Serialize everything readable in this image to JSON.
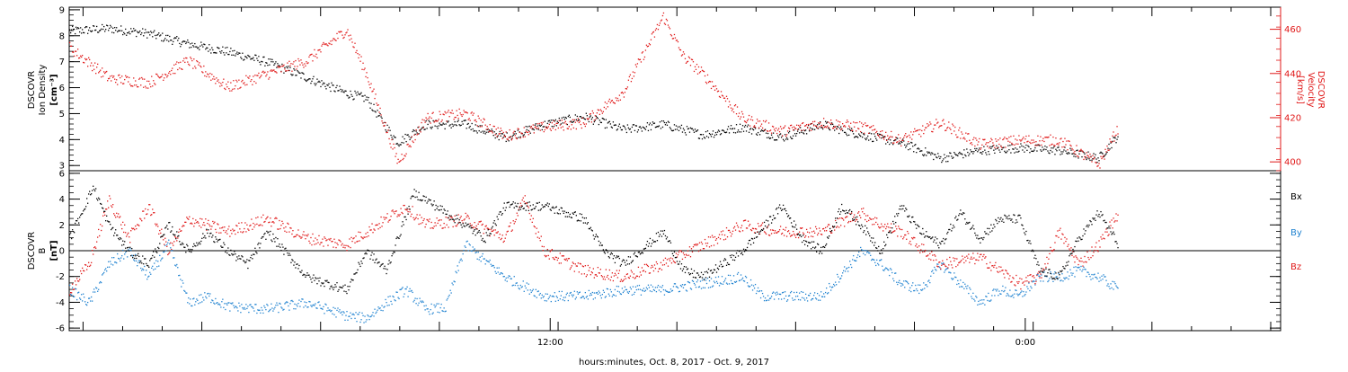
{
  "chart_data": [
    {
      "type": "scatter",
      "panel": "top",
      "ylabel_left": [
        "DSCOVR",
        "Ion Density",
        "[cm⁻³]"
      ],
      "ylabel_right": [
        "DSCOVR",
        "Velocity",
        "[km/s]"
      ],
      "ylim_left": [
        2.8,
        9.1
      ],
      "ylim_right": [
        396,
        470
      ],
      "yticks_left": [
        "3",
        "4",
        "5",
        "6",
        "7",
        "8",
        "9"
      ],
      "yticks_right": [
        "400",
        "420",
        "440",
        "460"
      ],
      "series": [
        {
          "color": "#000000",
          "axis": "left",
          "x": [
            0.0,
            1.0,
            2.0,
            3.0,
            4.0,
            5.0,
            6.0,
            7.0,
            7.5,
            8.0,
            8.3,
            9.0,
            10.0,
            11.0,
            12.0,
            13.0,
            14.0,
            15.0,
            16.0,
            17.0,
            18.0,
            19.0,
            20.0,
            21.0,
            22.0,
            23.0,
            24.0,
            25.0,
            26.0,
            26.5
          ],
          "y": [
            8.2,
            8.3,
            8.1,
            7.7,
            7.4,
            7.0,
            6.4,
            5.8,
            5.6,
            4.5,
            3.9,
            4.6,
            4.6,
            4.1,
            4.6,
            4.9,
            4.4,
            4.6,
            4.2,
            4.5,
            4.1,
            4.6,
            4.2,
            3.9,
            3.3,
            3.6,
            3.7,
            3.6,
            3.3,
            4.2
          ]
        },
        {
          "color": "#e01818",
          "axis": "right",
          "x": [
            0.0,
            1.0,
            2.0,
            3.0,
            4.0,
            5.0,
            6.0,
            7.0,
            7.5,
            8.0,
            8.3,
            9.0,
            10.0,
            11.0,
            12.0,
            13.0,
            14.0,
            15.0,
            15.5,
            16.0,
            17.0,
            18.0,
            19.0,
            20.0,
            21.0,
            22.0,
            23.0,
            24.0,
            25.0,
            26.0,
            26.5
          ],
          "y": [
            452,
            438,
            436,
            446,
            434,
            440,
            446,
            460,
            440,
            415,
            400,
            420,
            422,
            412,
            416,
            418,
            432,
            466,
            448,
            440,
            420,
            414,
            418,
            416,
            410,
            418,
            408,
            410,
            410,
            399,
            416
          ]
        }
      ]
    },
    {
      "type": "scatter",
      "panel": "bottom",
      "ylabel": [
        "DSCOVR",
        "B",
        "[nT]"
      ],
      "ylim": [
        -6.2,
        6.2
      ],
      "yticks": [
        "-6",
        "-4",
        "-2",
        "0",
        "2",
        "4",
        "6"
      ],
      "xticks": [
        "12:00",
        "0:00"
      ],
      "xlabel": "hours:minutes, Oct.  8, 2017 - Oct.  9, 2017",
      "legend": [
        "Bx",
        "By",
        "Bz"
      ],
      "series": [
        {
          "name": "Bx",
          "color": "#000000",
          "x": [
            0.0,
            0.6,
            1.0,
            1.5,
            2.0,
            2.5,
            3.0,
            3.5,
            4.0,
            4.5,
            5.0,
            6.0,
            7.0,
            7.5,
            8.0,
            8.7,
            9.0,
            10.0,
            10.5,
            11.0,
            12.0,
            13.0,
            13.5,
            14.0,
            15.0,
            15.5,
            16.0,
            17.0,
            18.0,
            18.5,
            19.0,
            19.5,
            20.0,
            20.5,
            21.0,
            21.5,
            22.0,
            22.5,
            23.0,
            23.5,
            24.0,
            24.5,
            25.0,
            25.5,
            26.0,
            26.5
          ],
          "y": [
            1.0,
            5.0,
            2.0,
            0.0,
            -1.0,
            2.0,
            0.0,
            1.5,
            0.0,
            -1.0,
            1.5,
            -2.0,
            -3.0,
            0.0,
            -1.5,
            4.5,
            4.0,
            2.0,
            1.0,
            3.5,
            3.5,
            2.5,
            0.0,
            -1.0,
            1.5,
            -1.5,
            -2.0,
            0.0,
            3.5,
            1.0,
            0.0,
            3.5,
            2.0,
            0.0,
            3.5,
            1.5,
            0.5,
            3.0,
            1.0,
            2.5,
            2.5,
            -1.5,
            -2.0,
            1.0,
            3.0,
            0.5
          ]
        },
        {
          "name": "By",
          "color": "#1f82d0",
          "x": [
            0.0,
            0.5,
            1.0,
            1.5,
            2.0,
            2.5,
            3.0,
            3.5,
            4.0,
            5.0,
            6.0,
            7.0,
            7.5,
            8.0,
            8.5,
            9.0,
            9.5,
            10.0,
            11.0,
            12.0,
            13.0,
            14.0,
            15.0,
            16.0,
            17.0,
            17.5,
            18.0,
            19.0,
            20.0,
            20.5,
            21.0,
            21.5,
            22.0,
            23.0,
            23.5,
            24.0,
            24.5,
            25.0,
            25.5,
            26.0,
            26.5
          ],
          "y": [
            -3.0,
            -4.0,
            -1.0,
            0.0,
            -2.0,
            0.5,
            -4.0,
            -3.5,
            -4.3,
            -4.5,
            -4.0,
            -5.0,
            -5.2,
            -4.0,
            -3.0,
            -4.5,
            -4.4,
            0.5,
            -2.0,
            -3.5,
            -3.5,
            -3.0,
            -3.0,
            -2.5,
            -2.0,
            -3.5,
            -3.5,
            -3.5,
            0.0,
            -1.0,
            -2.5,
            -3.0,
            -1.0,
            -4.0,
            -3.0,
            -3.5,
            -2.0,
            -2.0,
            -1.5,
            -2.0,
            -3.0
          ]
        },
        {
          "name": "Bz",
          "color": "#e01818",
          "x": [
            0.0,
            0.5,
            1.0,
            1.5,
            2.0,
            2.5,
            3.0,
            3.5,
            4.0,
            5.0,
            6.0,
            7.0,
            7.5,
            8.0,
            8.5,
            9.0,
            10.0,
            11.0,
            11.5,
            12.0,
            13.0,
            14.0,
            15.0,
            16.0,
            17.0,
            18.0,
            19.0,
            20.0,
            20.5,
            21.0,
            22.0,
            23.0,
            24.0,
            24.5,
            25.0,
            25.5,
            26.0,
            26.5
          ],
          "y": [
            -3.0,
            -1.0,
            4.0,
            1.0,
            3.5,
            0.0,
            2.5,
            2.0,
            1.5,
            2.5,
            1.0,
            0.5,
            1.5,
            2.5,
            3.5,
            2.0,
            2.5,
            1.0,
            4.0,
            0.0,
            -1.5,
            -2.0,
            -1.0,
            0.5,
            2.0,
            1.5,
            1.5,
            3.0,
            2.0,
            1.5,
            -1.0,
            -0.5,
            -2.5,
            -2.0,
            1.5,
            -1.0,
            0.5,
            3.0
          ]
        }
      ]
    }
  ]
}
